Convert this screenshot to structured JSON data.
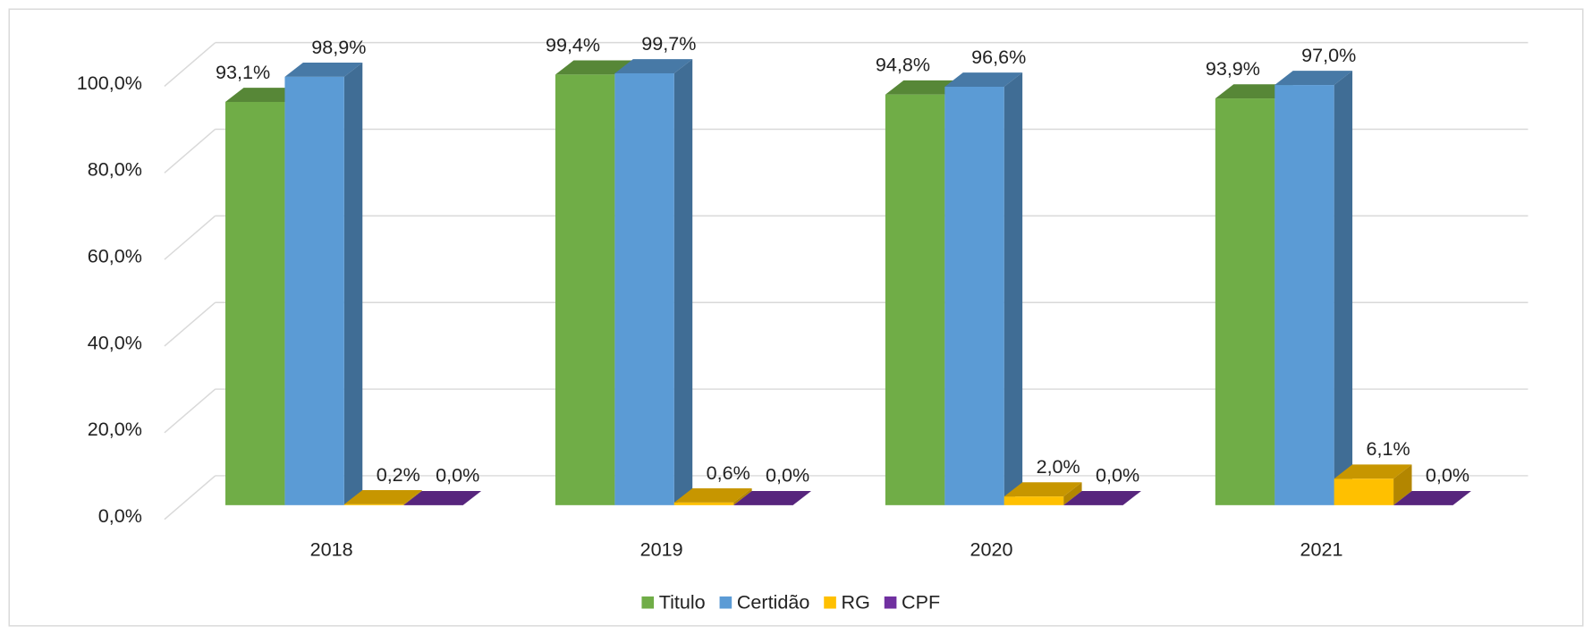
{
  "chart_data": {
    "type": "bar3d",
    "categories": [
      "2018",
      "2019",
      "2020",
      "2021"
    ],
    "series": [
      {
        "name": "Titulo",
        "color": "#70ad47",
        "values": [
          93.1,
          99.4,
          94.8,
          93.9
        ],
        "value_labels": [
          "93,1%",
          "99,4%",
          "94,8%",
          "93,9%"
        ]
      },
      {
        "name": "Certidão",
        "color": "#5b9bd5",
        "values": [
          98.9,
          99.7,
          96.6,
          97.0
        ],
        "value_labels": [
          "98,9%",
          "99,7%",
          "96,6%",
          "97,0%"
        ]
      },
      {
        "name": "RG",
        "color": "#ffc000",
        "values": [
          0.2,
          0.6,
          2.0,
          6.1
        ],
        "value_labels": [
          "0,2%",
          "0,6%",
          "2,0%",
          "6,1%"
        ]
      },
      {
        "name": "CPF",
        "color": "#7030a0",
        "values": [
          0.0,
          0.0,
          0.0,
          0.0
        ],
        "value_labels": [
          "0,0%",
          "0,0%",
          "0,0%",
          "0,0%"
        ]
      }
    ],
    "ylim": [
      0,
      100
    ],
    "yticks": [
      {
        "value": 0,
        "label": "0,0%"
      },
      {
        "value": 20,
        "label": "20,0%"
      },
      {
        "value": 40,
        "label": "40,0%"
      },
      {
        "value": 60,
        "label": "60,0%"
      },
      {
        "value": 80,
        "label": "80,0%"
      },
      {
        "value": 100,
        "label": "100,0%"
      }
    ],
    "grid": true,
    "legend": "bottom"
  }
}
